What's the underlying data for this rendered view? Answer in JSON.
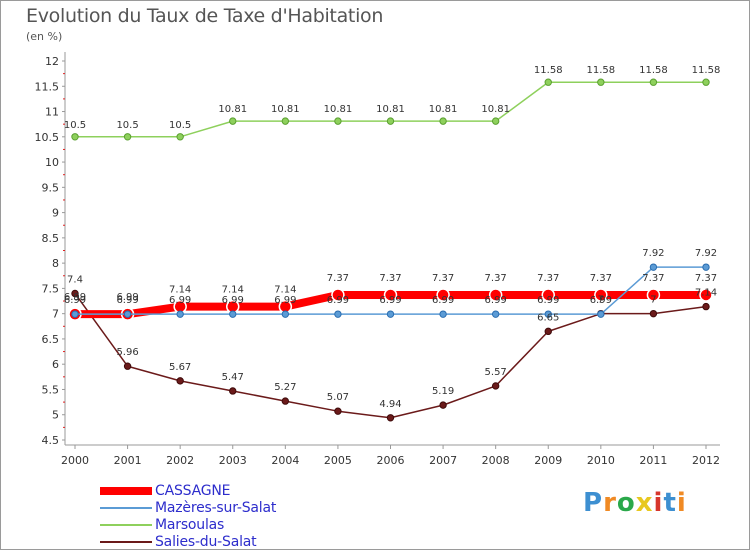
{
  "chart_data": {
    "type": "line",
    "title": "Evolution du Taux de Taxe d'Habitation",
    "subtitle": "(en %)",
    "x": [
      "2000",
      "2001",
      "2002",
      "2003",
      "2004",
      "2005",
      "2006",
      "2007",
      "2008",
      "2009",
      "2010",
      "2011",
      "2012"
    ],
    "ylim": [
      4.5,
      12
    ],
    "yticks": [
      "4.5",
      "5",
      "5.5",
      "6",
      "6.5",
      "7",
      "7.5",
      "8",
      "8.5",
      "9",
      "9.5",
      "10",
      "10.5",
      "11",
      "11.5",
      "12"
    ],
    "grid": false,
    "legend_position": "bottom-left",
    "series": [
      {
        "name": "CASSAGNE",
        "color": "#ff0000",
        "values": [
          6.99,
          6.99,
          7.14,
          7.14,
          7.14,
          7.37,
          7.37,
          7.37,
          7.37,
          7.37,
          7.37,
          7.37,
          7.37
        ],
        "labels": [
          "6.99",
          "6.99",
          "7.14",
          "7.14",
          "7.14",
          "7.37",
          "7.37",
          "7.37",
          "7.37",
          "7.37",
          "7.37",
          "7.37",
          "7.37"
        ]
      },
      {
        "name": "Mazères-sur-Salat",
        "color": "#5b9bd5",
        "values": [
          6.99,
          6.99,
          6.99,
          6.99,
          6.99,
          6.99,
          6.99,
          6.99,
          6.99,
          6.99,
          6.99,
          7.92,
          7.92
        ],
        "labels": [
          "6.99",
          "6.99",
          "6.99",
          "6.99",
          "6.99",
          "6.99",
          "6.99",
          "6.99",
          "6.99",
          "6.99",
          "6.99",
          "7.92",
          "7.92"
        ]
      },
      {
        "name": "Marsoulas",
        "color": "#8ed05c",
        "values": [
          10.5,
          10.5,
          10.5,
          10.81,
          10.81,
          10.81,
          10.81,
          10.81,
          10.81,
          11.58,
          11.58,
          11.58,
          11.58
        ],
        "labels": [
          "10.5",
          "10.5",
          "10.5",
          "10.81",
          "10.81",
          "10.81",
          "10.81",
          "10.81",
          "10.81",
          "11.58",
          "11.58",
          "11.58",
          "11.58"
        ]
      },
      {
        "name": "Salies-du-Salat",
        "color": "#6b1a1a",
        "values": [
          7.4,
          5.96,
          5.67,
          5.47,
          5.27,
          5.07,
          4.94,
          5.19,
          5.57,
          6.65,
          7.0,
          7.0,
          7.14
        ],
        "labels": [
          "7.4",
          "5.96",
          "5.67",
          "5.47",
          "5.27",
          "5.07",
          "4.94",
          "5.19",
          "5.57",
          "6.65",
          "7",
          "7",
          "7.14"
        ]
      }
    ]
  },
  "logo": {
    "text": "Proxiti",
    "colors": [
      "#3d8fd1",
      "#f08a24",
      "#2aa84a",
      "#e8c820",
      "#d7362c",
      "#3d8fd1",
      "#f08a24"
    ]
  }
}
